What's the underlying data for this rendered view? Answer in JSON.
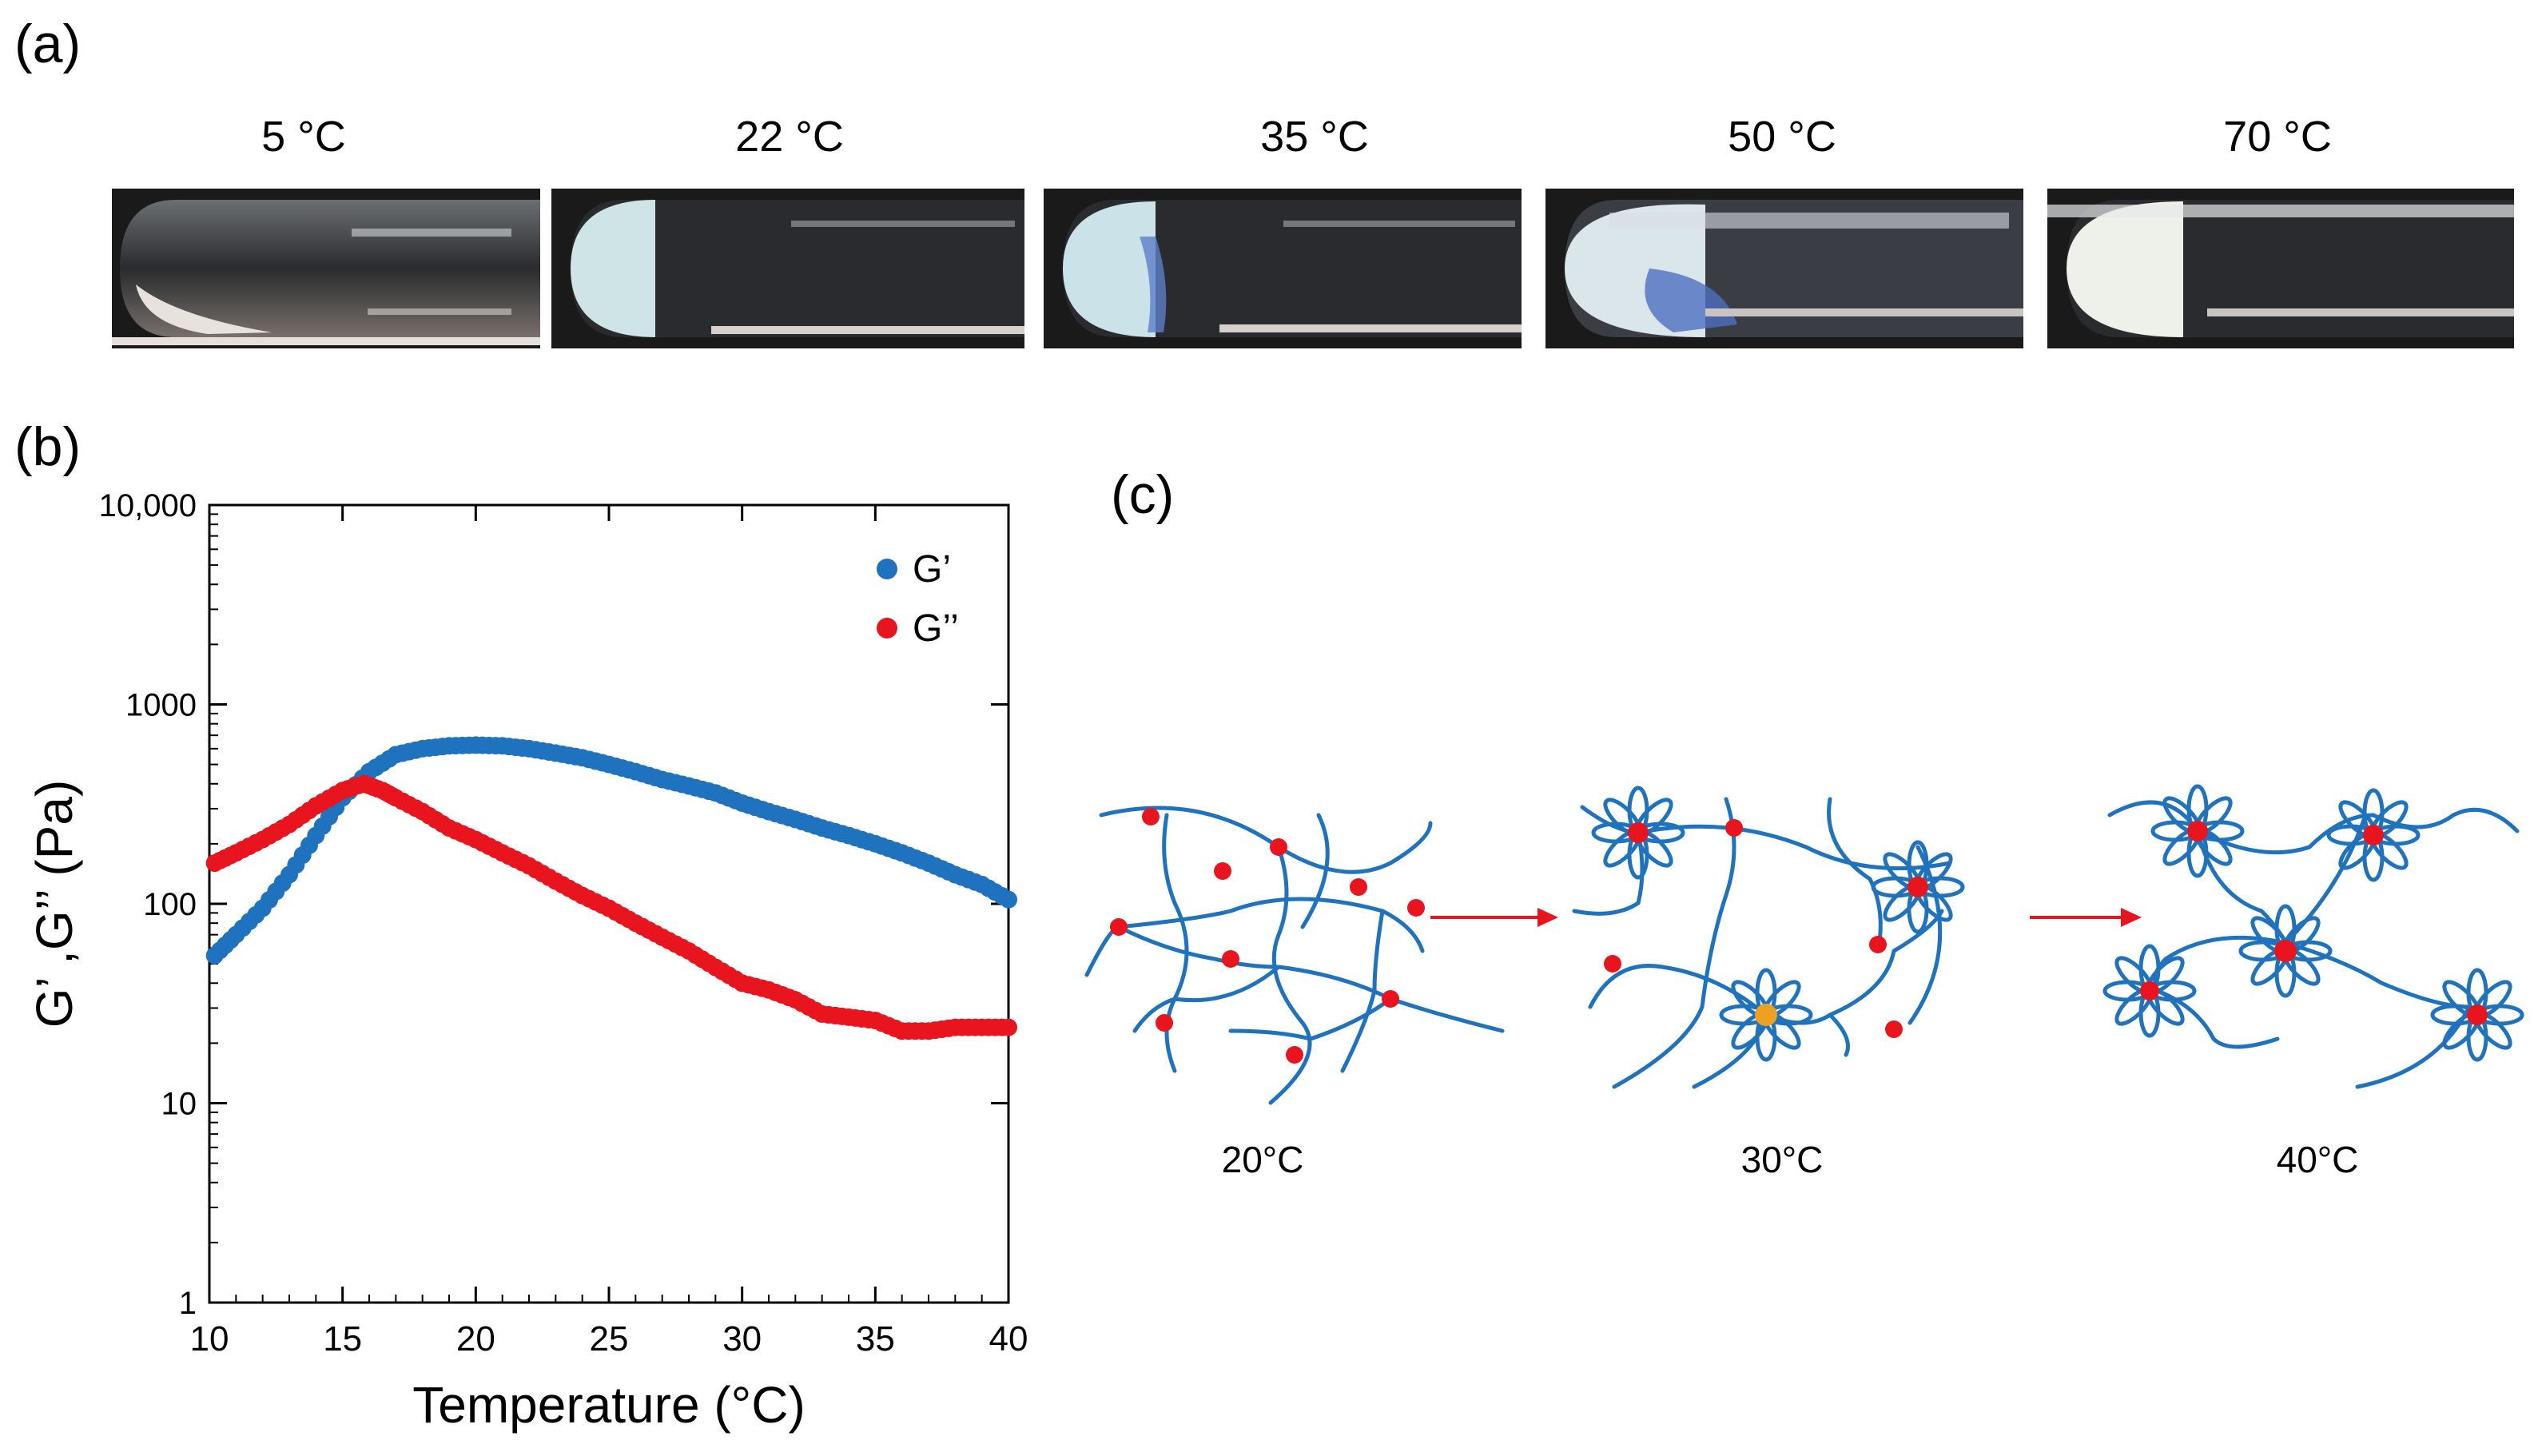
{
  "panels": {
    "a_label": "(a)",
    "b_label": "(b)",
    "c_label": "(c)"
  },
  "tubes": [
    {
      "temp": "5 °C",
      "state": "clear-liquid"
    },
    {
      "temp": "22 °C",
      "state": "translucent-gel"
    },
    {
      "temp": "35 °C",
      "state": "translucent-gel"
    },
    {
      "temp": "50 °C",
      "state": "opaque-gel"
    },
    {
      "temp": "70 °C",
      "state": "white-gel"
    }
  ],
  "chart_data": {
    "type": "scatter",
    "xlabel": "Temperature (°C)",
    "ylabel": "G’ ,G’’ (Pa)",
    "xlim": [
      10,
      40
    ],
    "ylim": [
      1,
      10000
    ],
    "yscale": "log",
    "x_ticks": [
      "10",
      "15",
      "20",
      "25",
      "30",
      "35",
      "40"
    ],
    "y_ticks": [
      "1",
      "10",
      "100",
      "1000",
      "10,000"
    ],
    "legend_position": "top-right",
    "series": [
      {
        "name": "G’",
        "color": "#1f72bd",
        "points": [
          [
            10.2,
            55
          ],
          [
            11,
            70
          ],
          [
            12,
            95
          ],
          [
            13,
            140
          ],
          [
            14,
            220
          ],
          [
            15,
            340
          ],
          [
            16,
            460
          ],
          [
            17,
            560
          ],
          [
            18,
            600
          ],
          [
            19,
            620
          ],
          [
            20,
            625
          ],
          [
            21,
            620
          ],
          [
            22,
            600
          ],
          [
            23,
            570
          ],
          [
            24,
            540
          ],
          [
            25,
            500
          ],
          [
            26,
            460
          ],
          [
            27,
            420
          ],
          [
            28,
            390
          ],
          [
            29,
            360
          ],
          [
            30,
            320
          ],
          [
            31,
            290
          ],
          [
            32,
            265
          ],
          [
            33,
            240
          ],
          [
            34,
            220
          ],
          [
            35,
            200
          ],
          [
            36,
            180
          ],
          [
            37,
            160
          ],
          [
            38,
            140
          ],
          [
            39,
            125
          ],
          [
            40,
            105
          ]
        ]
      },
      {
        "name": "G’’",
        "color": "#e8141e",
        "points": [
          [
            10.2,
            160
          ],
          [
            11,
            180
          ],
          [
            12,
            210
          ],
          [
            13,
            250
          ],
          [
            14,
            310
          ],
          [
            15,
            370
          ],
          [
            15.8,
            400
          ],
          [
            16.5,
            370
          ],
          [
            17,
            340
          ],
          [
            18,
            290
          ],
          [
            19,
            240
          ],
          [
            20,
            210
          ],
          [
            21,
            180
          ],
          [
            22,
            155
          ],
          [
            23,
            130
          ],
          [
            24,
            110
          ],
          [
            25,
            95
          ],
          [
            26,
            80
          ],
          [
            27,
            68
          ],
          [
            28,
            58
          ],
          [
            29,
            48
          ],
          [
            30,
            40
          ],
          [
            31,
            37
          ],
          [
            32,
            33
          ],
          [
            33,
            28
          ],
          [
            34,
            27
          ],
          [
            35,
            26
          ],
          [
            36,
            23
          ],
          [
            37,
            23
          ],
          [
            38,
            24
          ],
          [
            39,
            24
          ],
          [
            40,
            24
          ]
        ]
      }
    ]
  },
  "diagram": {
    "labels": [
      "20°C",
      "30°C",
      "40°C"
    ],
    "chain_color": "#1f72bd",
    "crosslink_color": "#e8141e",
    "core_alt_color": "#f0a020",
    "arrow_color": "#e8141e"
  }
}
